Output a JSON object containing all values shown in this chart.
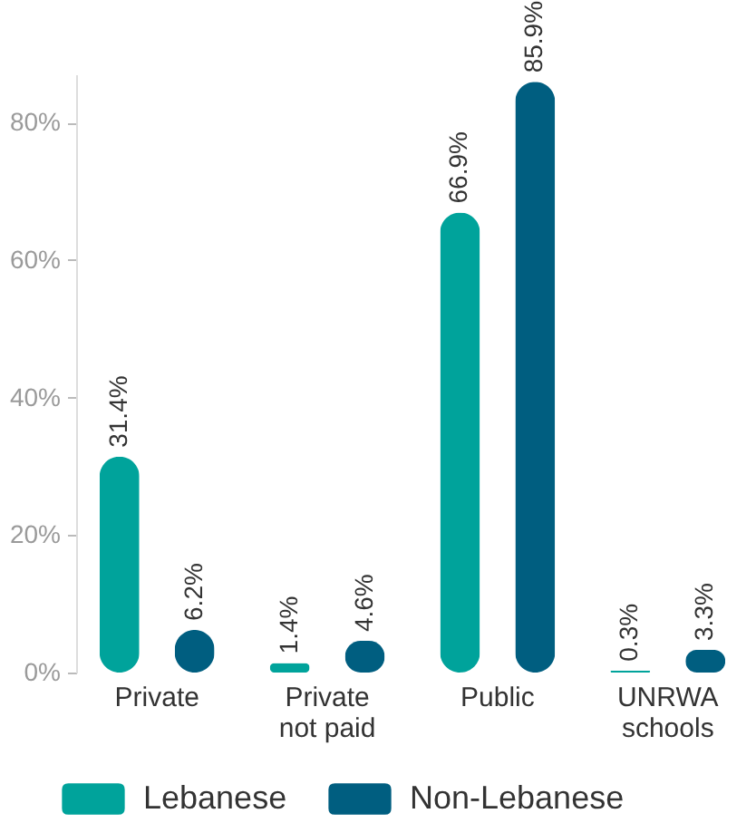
{
  "chart_data": {
    "type": "bar",
    "categories": [
      "Private",
      "Private\nnot paid",
      "Public",
      "UNRWA\nschools"
    ],
    "series": [
      {
        "name": "Lebanese",
        "color": "#00a39b",
        "values": [
          31.4,
          1.4,
          66.9,
          0.3
        ],
        "value_labels": [
          "31.4%",
          "1.4%",
          "66.9%",
          "0.3%"
        ]
      },
      {
        "name": "Non-Lebanese",
        "color": "#005e80",
        "values": [
          6.2,
          4.6,
          85.9,
          3.3
        ],
        "value_labels": [
          "6.2%",
          "4.6%",
          "85.9%",
          "3.3%"
        ]
      }
    ],
    "ylim": [
      0,
      87
    ],
    "yticks": [
      {
        "value": 0,
        "label": "0%"
      },
      {
        "value": 20,
        "label": "20%"
      },
      {
        "value": 40,
        "label": "40%"
      },
      {
        "value": 60,
        "label": "60%"
      },
      {
        "value": 80,
        "label": "80%"
      }
    ],
    "grid": false,
    "legend": "bottom"
  }
}
